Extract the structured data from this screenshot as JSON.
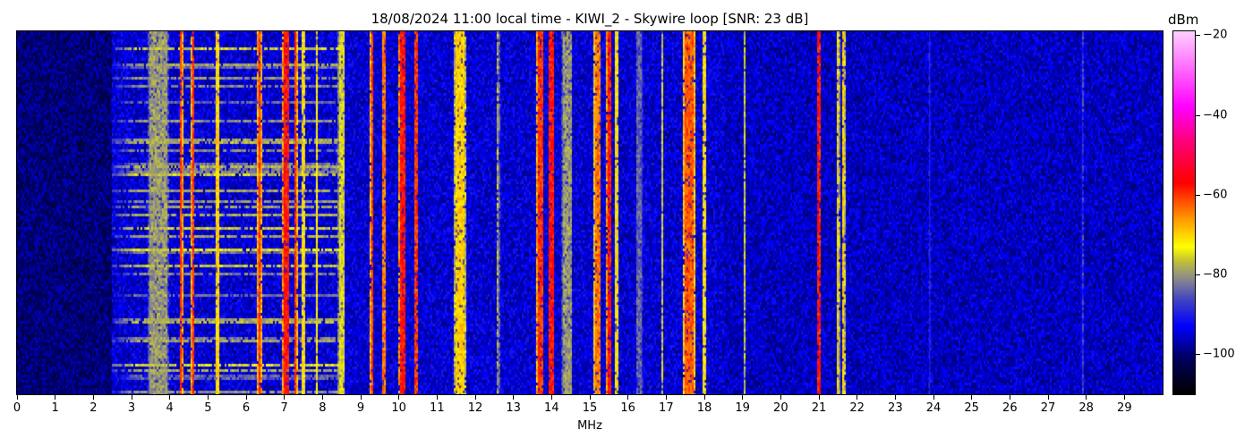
{
  "chart_data": {
    "type": "heatmap",
    "title": "18/08/2024 11:00 local time - KIWI_2 - Skywire loop [SNR: 23 dB]",
    "xlabel": "MHz",
    "ylabel": "",
    "xlim": [
      0,
      30
    ],
    "x_ticks": [
      0,
      1,
      2,
      3,
      4,
      5,
      6,
      7,
      8,
      9,
      10,
      11,
      12,
      13,
      14,
      15,
      16,
      17,
      18,
      19,
      20,
      21,
      22,
      23,
      24,
      25,
      26,
      27,
      28,
      29
    ],
    "colorbar": {
      "label": "dBm",
      "range": [
        -110,
        -19
      ],
      "ticks": [
        -20,
        -40,
        -60,
        -80,
        -100
      ],
      "colormap": [
        {
          "v": -110,
          "c": "#000000"
        },
        {
          "v": -101,
          "c": "#000060"
        },
        {
          "v": -93,
          "c": "#0000ff"
        },
        {
          "v": -86,
          "c": "#4848c0"
        },
        {
          "v": -81,
          "c": "#8c8c8c"
        },
        {
          "v": -77,
          "c": "#bcbc40"
        },
        {
          "v": -73,
          "c": "#ffff00"
        },
        {
          "v": -66,
          "c": "#ff9900"
        },
        {
          "v": -57,
          "c": "#ff0000"
        },
        {
          "v": -46,
          "c": "#ff0080"
        },
        {
          "v": -38,
          "c": "#ff00ff"
        },
        {
          "v": -19,
          "c": "#ffd0ff"
        }
      ]
    },
    "noise_floor": [
      {
        "from_mhz": 0,
        "to_mhz": 2.5,
        "dbm": -100
      },
      {
        "from_mhz": 2.5,
        "to_mhz": 18.5,
        "dbm": -95
      },
      {
        "from_mhz": 18.5,
        "to_mhz": 30,
        "dbm": -96
      }
    ],
    "broadband_rows": {
      "from_mhz": 2.5,
      "to_mhz": 8.6,
      "dbm": -74
    },
    "signals": [
      {
        "mhz": 3.7,
        "width": 0.5,
        "dbm": -80
      },
      {
        "mhz": 4.3,
        "width": 0.05,
        "dbm": -60
      },
      {
        "mhz": 4.6,
        "width": 0.05,
        "dbm": -60
      },
      {
        "mhz": 5.25,
        "width": 0.1,
        "dbm": -70
      },
      {
        "mhz": 6.35,
        "width": 0.08,
        "dbm": -60
      },
      {
        "mhz": 7.05,
        "width": 0.15,
        "dbm": -58
      },
      {
        "mhz": 7.3,
        "width": 0.06,
        "dbm": -60
      },
      {
        "mhz": 7.5,
        "width": 0.06,
        "dbm": -72
      },
      {
        "mhz": 7.85,
        "width": 0.05,
        "dbm": -72
      },
      {
        "mhz": 8.5,
        "width": 0.15,
        "dbm": -75
      },
      {
        "mhz": 9.3,
        "width": 0.05,
        "dbm": -60
      },
      {
        "mhz": 9.6,
        "width": 0.08,
        "dbm": -64
      },
      {
        "mhz": 10.1,
        "width": 0.15,
        "dbm": -58
      },
      {
        "mhz": 10.45,
        "width": 0.07,
        "dbm": -60
      },
      {
        "mhz": 11.6,
        "width": 0.25,
        "dbm": -70
      },
      {
        "mhz": 12.6,
        "width": 0.04,
        "dbm": -78
      },
      {
        "mhz": 13.7,
        "width": 0.15,
        "dbm": -60
      },
      {
        "mhz": 14.0,
        "width": 0.12,
        "dbm": -58
      },
      {
        "mhz": 14.4,
        "width": 0.25,
        "dbm": -80
      },
      {
        "mhz": 15.2,
        "width": 0.15,
        "dbm": -64
      },
      {
        "mhz": 15.5,
        "width": 0.08,
        "dbm": -58
      },
      {
        "mhz": 15.7,
        "width": 0.08,
        "dbm": -72
      },
      {
        "mhz": 16.3,
        "width": 0.15,
        "dbm": -84
      },
      {
        "mhz": 16.9,
        "width": 0.04,
        "dbm": -76
      },
      {
        "mhz": 17.6,
        "width": 0.25,
        "dbm": -62
      },
      {
        "mhz": 18.0,
        "width": 0.06,
        "dbm": -72
      },
      {
        "mhz": 19.05,
        "width": 0.03,
        "dbm": -76
      },
      {
        "mhz": 21.0,
        "width": 0.06,
        "dbm": -58
      },
      {
        "mhz": 21.5,
        "width": 0.04,
        "dbm": -72
      },
      {
        "mhz": 21.65,
        "width": 0.05,
        "dbm": -70
      },
      {
        "mhz": 23.9,
        "width": 0.03,
        "dbm": -86
      },
      {
        "mhz": 27.9,
        "width": 0.03,
        "dbm": -88
      }
    ]
  }
}
